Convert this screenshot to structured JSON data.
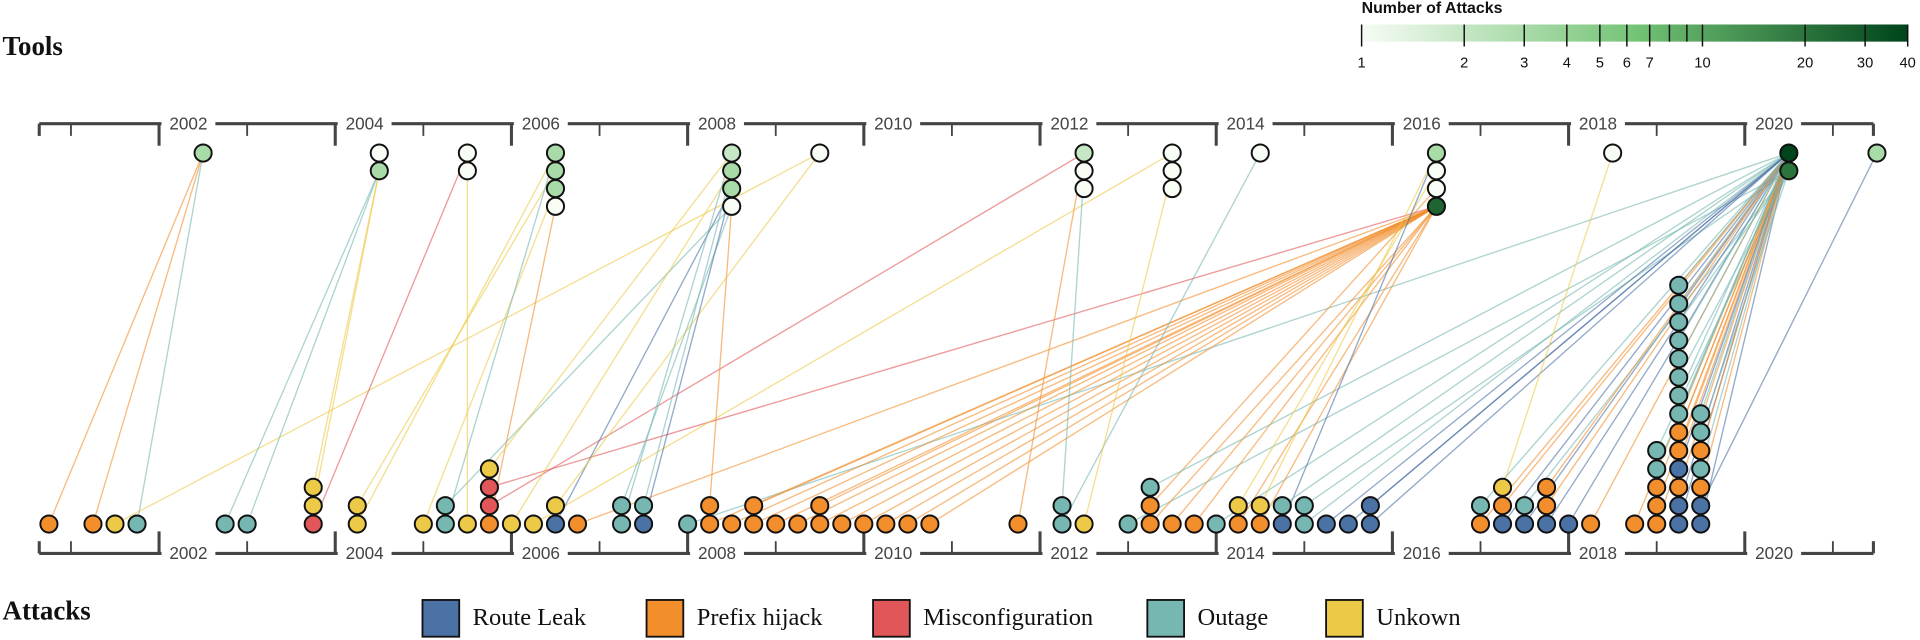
{
  "chart_data": {
    "type": "timeline",
    "tools_title": "Tools",
    "attacks_title": "Attacks",
    "colorbar_title": "Number of Attacks",
    "colorbar_lim": [
      1,
      40
    ],
    "colorbar_ticks": [
      1,
      2,
      3,
      4,
      5,
      6,
      7,
      10,
      20,
      30,
      40
    ],
    "colorbar_minor_ticks": [
      8,
      9
    ],
    "colorscale": [
      "#f7fcf5",
      "#74c476",
      "#00441b"
    ],
    "xlim": [
      2000.64,
      2021.46
    ],
    "xticks": [
      2002,
      2004,
      2006,
      2008,
      2010,
      2012,
      2014,
      2016,
      2018,
      2020
    ],
    "minor_xticks": [
      2001,
      2003,
      2005,
      2007,
      2009,
      2011,
      2013,
      2015,
      2017,
      2019,
      2021
    ],
    "series": [
      {
        "name": "Route Leak",
        "color": "#4b72a5"
      },
      {
        "name": "Prefix hijack",
        "color": "#f28e2b"
      },
      {
        "name": "Misconfiguration",
        "color": "#e15759"
      },
      {
        "name": "Outage",
        "color": "#76b7b2"
      },
      {
        "name": "Unkown",
        "color": "#edc948"
      }
    ],
    "tools": [
      {
        "x": 2002.5,
        "counts": [
          3
        ]
      },
      {
        "x": 2004.5,
        "counts": [
          1,
          3
        ]
      },
      {
        "x": 2005.5,
        "counts": [
          1,
          1
        ]
      },
      {
        "x": 2006.5,
        "counts": [
          3,
          3,
          3,
          1
        ]
      },
      {
        "x": 2008.5,
        "counts": [
          2,
          3,
          3,
          1
        ]
      },
      {
        "x": 2009.5,
        "counts": [
          1
        ]
      },
      {
        "x": 2012.5,
        "counts": [
          2,
          1,
          1
        ]
      },
      {
        "x": 2013.5,
        "counts": [
          1,
          1,
          1
        ]
      },
      {
        "x": 2014.5,
        "counts": [
          1
        ]
      },
      {
        "x": 2016.5,
        "counts": [
          3,
          1,
          1,
          25
        ]
      },
      {
        "x": 2018.5,
        "counts": [
          1
        ]
      },
      {
        "x": 2020.5,
        "counts": [
          40,
          20
        ]
      },
      {
        "x": 2021.5,
        "counts": [
          3
        ]
      }
    ],
    "attacks": [
      {
        "x": 2000.75,
        "types": [
          1
        ],
        "tools": [
          0
        ]
      },
      {
        "x": 2001.25,
        "types": [
          1
        ],
        "tools": [
          0
        ]
      },
      {
        "x": 2001.5,
        "types": [
          4
        ],
        "tools": [
          13
        ]
      },
      {
        "x": 2001.75,
        "types": [
          3
        ],
        "tools": [
          0
        ]
      },
      {
        "x": 2002.75,
        "types": [
          3
        ],
        "tools": [
          2
        ]
      },
      {
        "x": 2003,
        "types": [
          3
        ],
        "tools": [
          2
        ]
      },
      {
        "x": 2003.75,
        "types": [
          2,
          4,
          4
        ],
        "tools": [
          3,
          2,
          2
        ]
      },
      {
        "x": 2004.25,
        "types": [
          4,
          4
        ],
        "tools": [
          5,
          6
        ]
      },
      {
        "x": 2005,
        "types": [
          4
        ],
        "tools": [
          7
        ]
      },
      {
        "x": 2005.25,
        "types": [
          3,
          3
        ],
        "tools": [
          5,
          12
        ]
      },
      {
        "x": 2005.5,
        "types": [
          4
        ],
        "tools": [
          4
        ]
      },
      {
        "x": 2005.75,
        "types": [
          1,
          2,
          2,
          4
        ],
        "tools": [
          8,
          14,
          24,
          9
        ]
      },
      {
        "x": 2006,
        "types": [
          4
        ],
        "tools": [
          10
        ]
      },
      {
        "x": 2006.25,
        "types": [
          4
        ],
        "tools": [
          17
        ]
      },
      {
        "x": 2006.5,
        "types": [
          0,
          4
        ],
        "tools": [
          11,
          13
        ]
      },
      {
        "x": 2006.75,
        "types": [
          1
        ],
        "tools": [
          24
        ]
      },
      {
        "x": 2007.25,
        "types": [
          3,
          3
        ],
        "tools": [
          9,
          12
        ]
      },
      {
        "x": 2007.5,
        "types": [
          0,
          3
        ],
        "tools": [
          11,
          10
        ]
      },
      {
        "x": 2008,
        "types": [
          3
        ],
        "tools": [
          26
        ]
      },
      {
        "x": 2008.25,
        "types": [
          1,
          1
        ],
        "tools": [
          24,
          12
        ]
      },
      {
        "x": 2008.5,
        "types": [
          1
        ],
        "tools": [
          24
        ]
      },
      {
        "x": 2008.75,
        "types": [
          1,
          1
        ],
        "tools": [
          24,
          24
        ]
      },
      {
        "x": 2009,
        "types": [
          1
        ],
        "tools": [
          24
        ]
      },
      {
        "x": 2009.25,
        "types": [
          1
        ],
        "tools": [
          24
        ]
      },
      {
        "x": 2009.5,
        "types": [
          1,
          1
        ],
        "tools": [
          24,
          24
        ]
      },
      {
        "x": 2009.75,
        "types": [
          1
        ],
        "tools": [
          24
        ]
      },
      {
        "x": 2010,
        "types": [
          1
        ],
        "tools": [
          24
        ]
      },
      {
        "x": 2010.25,
        "types": [
          1
        ],
        "tools": [
          24
        ]
      },
      {
        "x": 2010.5,
        "types": [
          1
        ],
        "tools": [
          24
        ]
      },
      {
        "x": 2010.75,
        "types": [
          1
        ],
        "tools": [
          24
        ]
      },
      {
        "x": 2011.75,
        "types": [
          1
        ],
        "tools": [
          14
        ]
      },
      {
        "x": 2012.25,
        "types": [
          3,
          3
        ],
        "tools": [
          20,
          15
        ]
      },
      {
        "x": 2012.5,
        "types": [
          4
        ],
        "tools": [
          18
        ]
      },
      {
        "x": 2013,
        "types": [
          3
        ],
        "tools": [
          27
        ]
      },
      {
        "x": 2013.25,
        "types": [
          1,
          1,
          3
        ],
        "tools": [
          24,
          23,
          26
        ]
      },
      {
        "x": 2013.5,
        "types": [
          1
        ],
        "tools": [
          24
        ]
      },
      {
        "x": 2013.75,
        "types": [
          1
        ],
        "tools": [
          24
        ]
      },
      {
        "x": 2014,
        "types": [
          3
        ],
        "tools": [
          26
        ]
      },
      {
        "x": 2014.25,
        "types": [
          1,
          4
        ],
        "tools": [
          24,
          22
        ]
      },
      {
        "x": 2014.5,
        "types": [
          1,
          4
        ],
        "tools": [
          24,
          21
        ]
      },
      {
        "x": 2014.75,
        "types": [
          0,
          3
        ],
        "tools": [
          21,
          26
        ]
      },
      {
        "x": 2015,
        "types": [
          3,
          3
        ],
        "tools": [
          26,
          27
        ]
      },
      {
        "x": 2015.25,
        "types": [
          0
        ],
        "tools": [
          26
        ]
      },
      {
        "x": 2015.5,
        "types": [
          0
        ],
        "tools": [
          26
        ]
      },
      {
        "x": 2015.75,
        "types": [
          0,
          0
        ],
        "tools": [
          26,
          26
        ]
      },
      {
        "x": 2017,
        "types": [
          1,
          3
        ],
        "tools": [
          26,
          26
        ]
      },
      {
        "x": 2017.25,
        "types": [
          0,
          1,
          4
        ],
        "tools": [
          26,
          26,
          25
        ]
      },
      {
        "x": 2017.5,
        "types": [
          0,
          3
        ],
        "tools": [
          26,
          27
        ]
      },
      {
        "x": 2017.75,
        "types": [
          0,
          1,
          1
        ],
        "tools": [
          26,
          26,
          26
        ]
      },
      {
        "x": 2018,
        "types": [
          0
        ],
        "tools": [
          26
        ]
      },
      {
        "x": 2018.25,
        "types": [
          1
        ],
        "tools": [
          26
        ]
      },
      {
        "x": 2018.75,
        "types": [
          1
        ],
        "tools": [
          26
        ]
      },
      {
        "x": 2019,
        "types": [
          1,
          1,
          1,
          3,
          3
        ],
        "tools": [
          26,
          26,
          26,
          26,
          27
        ]
      },
      {
        "x": 2019.25,
        "types": [
          0,
          0,
          1,
          0,
          1,
          1,
          3,
          3,
          3,
          3,
          3,
          3,
          3,
          3
        ],
        "tools": [
          26,
          26,
          26,
          26,
          26,
          26,
          26,
          26,
          27,
          26,
          26,
          27,
          26,
          26
        ]
      },
      {
        "x": 2019.5,
        "types": [
          0,
          0,
          1,
          3,
          1,
          3,
          3
        ],
        "tools": [
          26,
          28,
          26,
          26,
          26,
          27,
          26
        ]
      }
    ]
  }
}
